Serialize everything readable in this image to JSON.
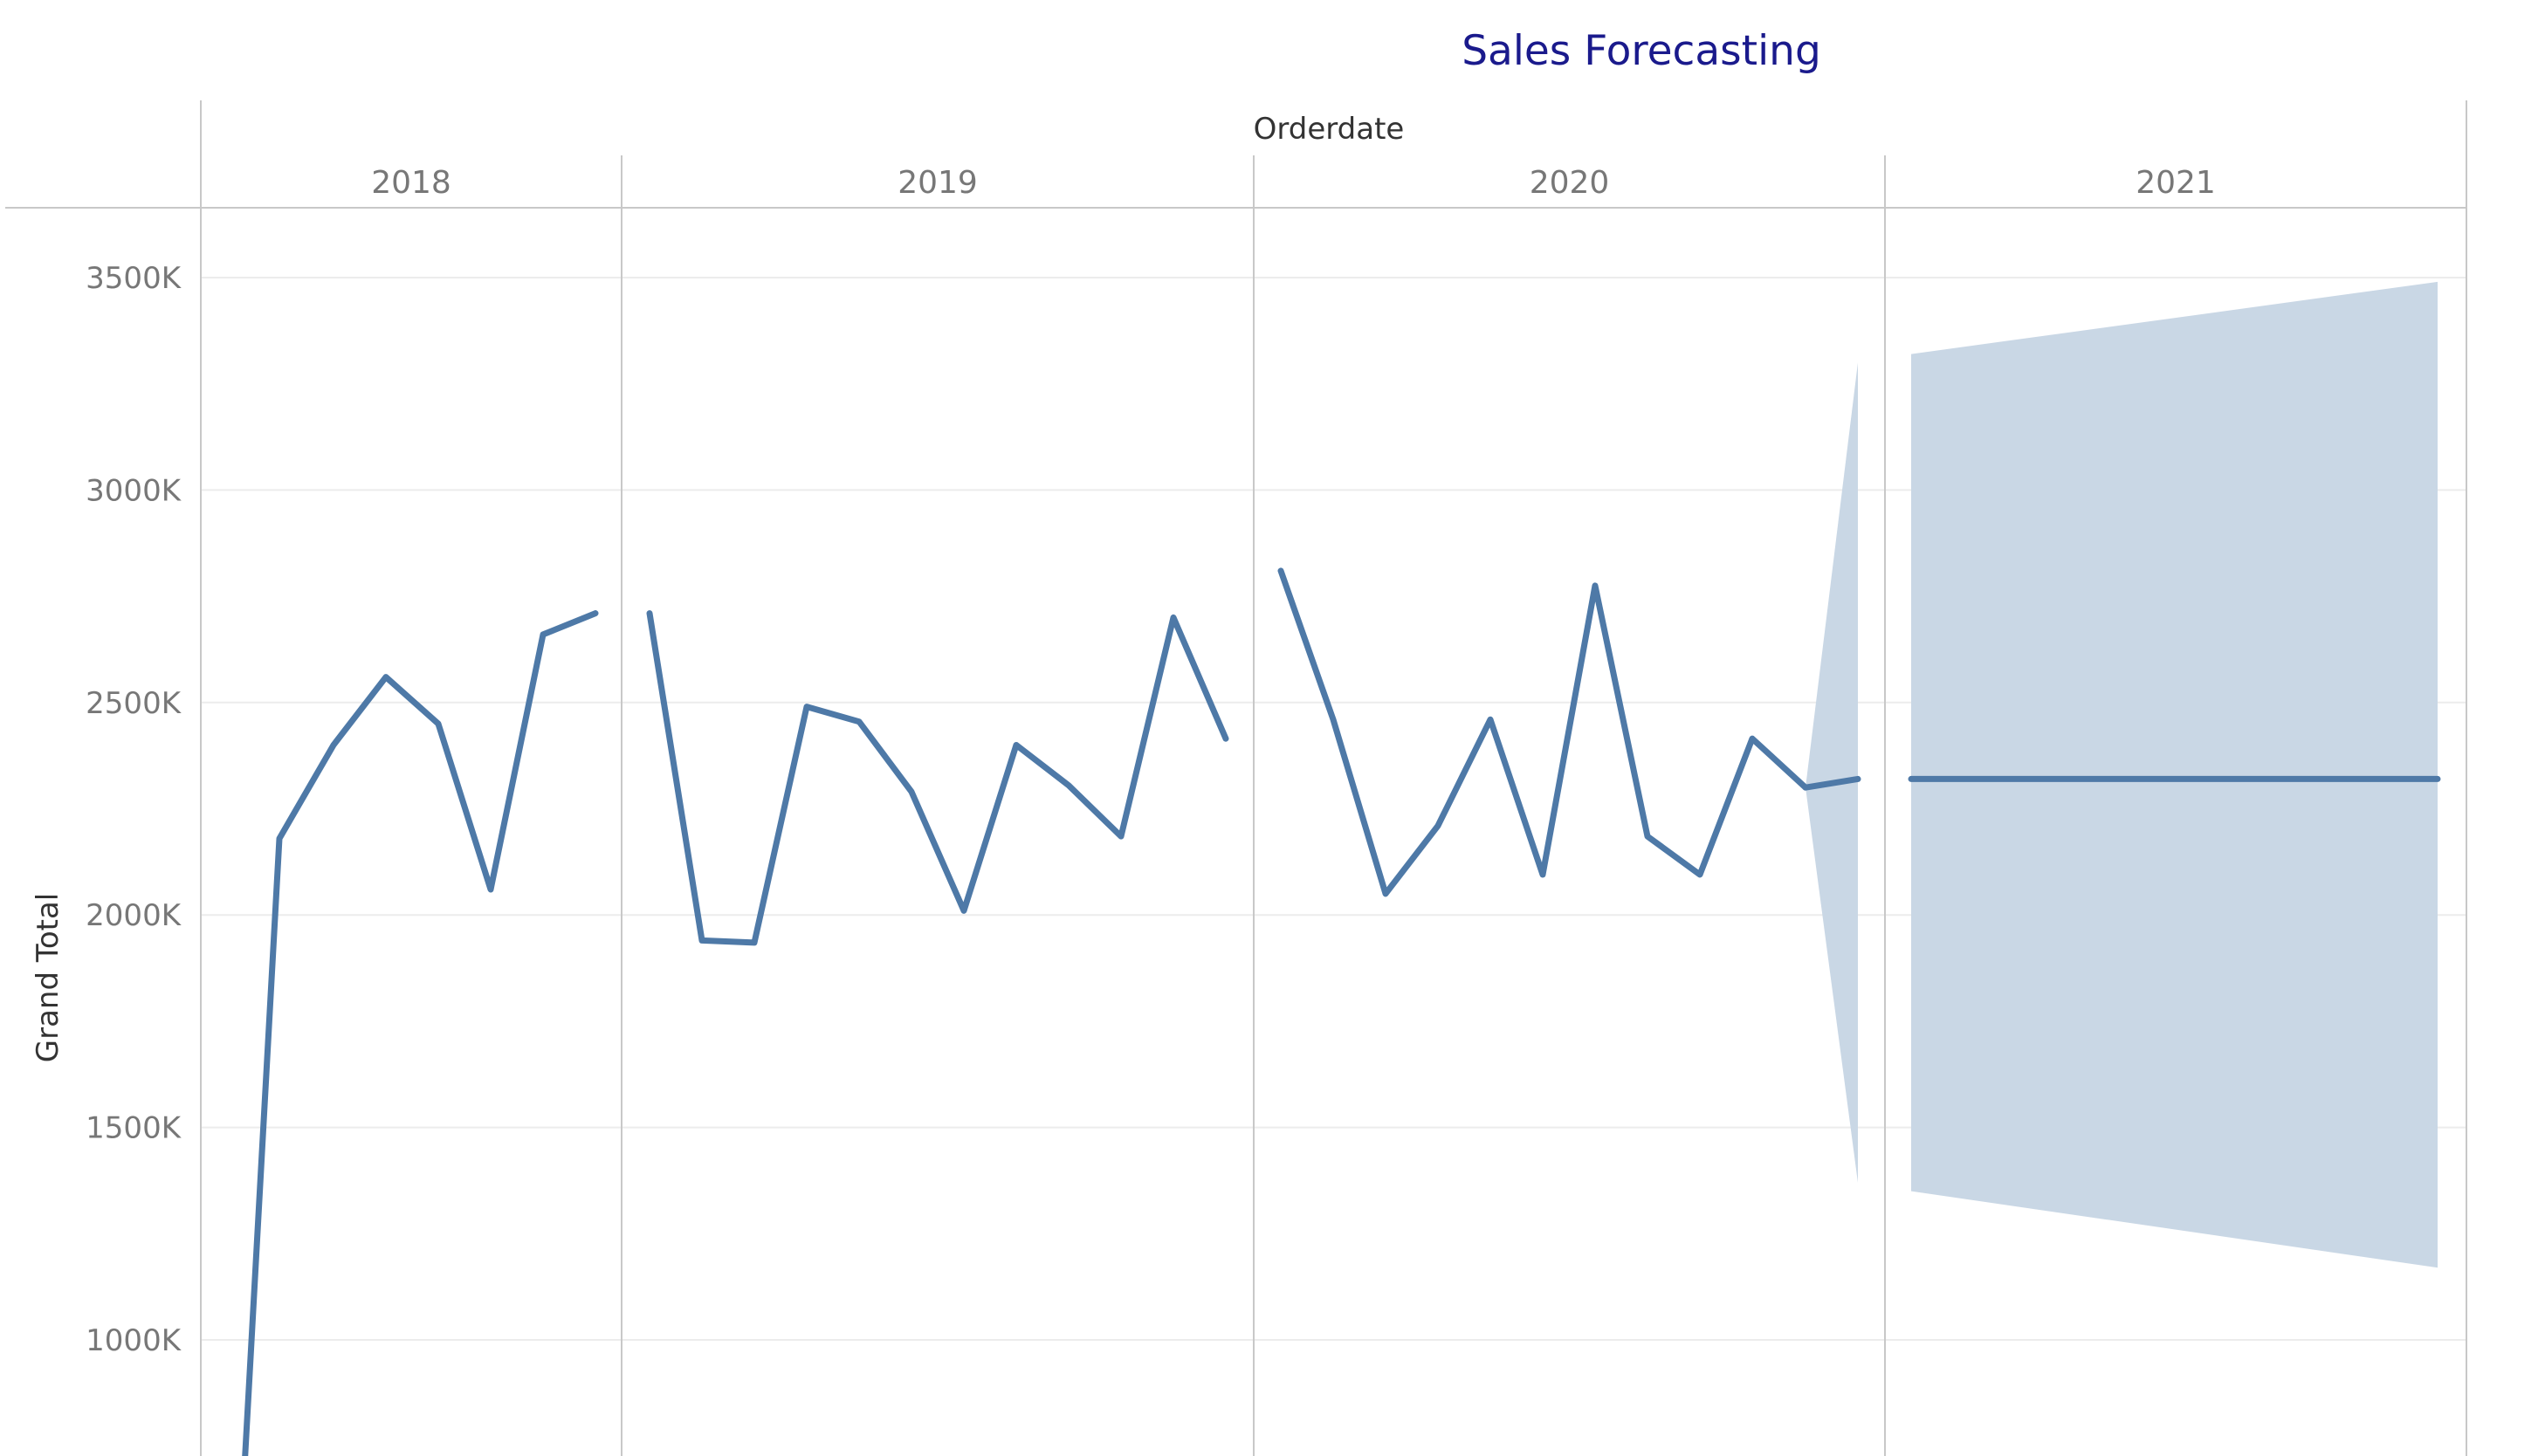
{
  "chart_data": {
    "type": "line",
    "title": "Sales Forecasting",
    "column_header": "Orderdate",
    "ylabel": "Grand Total",
    "ylim": [
      700,
      3650
    ],
    "y_unit_suffix": "K",
    "y_ticks": [
      1000,
      1500,
      2000,
      2500,
      3000,
      3500
    ],
    "y_tick_labels": [
      "1000K",
      "1500K",
      "2000K",
      "2500K",
      "3000K",
      "3500K"
    ],
    "grid": true,
    "colors": {
      "title": "#1a1a8c",
      "line": "#4e79a7",
      "band": "#c9d7e5",
      "divider": "#c8c8c8",
      "grid": "#ececec"
    },
    "panes": [
      {
        "year": "2018",
        "actual": [
          700,
          2180,
          2400,
          2560,
          2450,
          2060,
          2660,
          2710
        ]
      },
      {
        "year": "2019",
        "actual": [
          2710,
          1940,
          1935,
          2490,
          2455,
          2290,
          2010,
          2400,
          2305,
          2185,
          2700,
          2415
        ]
      },
      {
        "year": "2020",
        "actual": [
          2810,
          2460,
          2050,
          2210,
          2460,
          2095,
          2775,
          2185,
          2095,
          2415,
          2300
        ],
        "forecast": [
          2300,
          2320
        ],
        "band": [
          {
            "lower": 2300,
            "upper": 2300
          },
          {
            "lower": 1370,
            "upper": 3300
          }
        ]
      },
      {
        "year": "2021",
        "forecast": [
          2320,
          2320
        ],
        "band": [
          {
            "lower": 1350,
            "upper": 3320
          },
          {
            "lower": 1170,
            "upper": 3490
          }
        ]
      }
    ]
  }
}
